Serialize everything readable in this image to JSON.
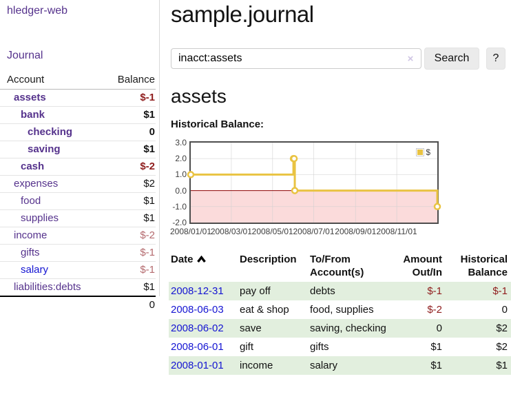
{
  "sidebar": {
    "brand": "hledger-web",
    "journal_link": "Journal",
    "accounts": {
      "col_account": "Account",
      "col_balance": "Balance",
      "rows": [
        {
          "name": "assets",
          "level": 0,
          "bold": true,
          "name_color": "purple",
          "balance": "$-1",
          "balance_style": "neg-strong"
        },
        {
          "name": "bank",
          "level": 1,
          "bold": true,
          "name_color": "purple",
          "balance": "$1",
          "balance_style": "pos"
        },
        {
          "name": "checking",
          "level": 2,
          "bold": true,
          "name_color": "purple",
          "balance": "0",
          "balance_style": "pos"
        },
        {
          "name": "saving",
          "level": 2,
          "bold": true,
          "name_color": "purple",
          "balance": "$1",
          "balance_style": "pos"
        },
        {
          "name": "cash",
          "level": 1,
          "bold": true,
          "name_color": "purple",
          "balance": "$-2",
          "balance_style": "neg-strong"
        },
        {
          "name": "expenses",
          "level": 0,
          "bold": false,
          "name_color": "purple",
          "balance": "$2",
          "balance_style": "pos"
        },
        {
          "name": "food",
          "level": 1,
          "bold": false,
          "name_color": "purple",
          "balance": "$1",
          "balance_style": "pos"
        },
        {
          "name": "supplies",
          "level": 1,
          "bold": false,
          "name_color": "purple",
          "balance": "$1",
          "balance_style": "pos"
        },
        {
          "name": "income",
          "level": 0,
          "bold": false,
          "name_color": "purple",
          "balance": "$-2",
          "balance_style": "neg-muted"
        },
        {
          "name": "gifts",
          "level": 1,
          "bold": false,
          "name_color": "purple",
          "balance": "$-1",
          "balance_style": "neg-muted"
        },
        {
          "name": "salary",
          "level": 1,
          "bold": false,
          "name_color": "blue",
          "balance": "$-1",
          "balance_style": "neg-muted"
        },
        {
          "name": "liabilities:debts",
          "level": 0,
          "bold": false,
          "name_color": "purple",
          "balance": "$1",
          "balance_style": "pos"
        }
      ],
      "total": "0"
    }
  },
  "header": {
    "title": "sample.journal"
  },
  "search": {
    "value": "inacct:assets",
    "clear_icon": "×",
    "button_label": "Search",
    "help_label": "?"
  },
  "account_page": {
    "title": "assets",
    "chart_heading": "Historical Balance:"
  },
  "chart_data": {
    "type": "line",
    "title": "Historical Balance",
    "step": true,
    "series": [
      {
        "name": "$",
        "color": "#e9c342",
        "points": [
          {
            "date": "2008/01/01",
            "day": 0,
            "value": 1
          },
          {
            "date": "2008/06/01",
            "day": 152,
            "value": 2
          },
          {
            "date": "2008/06/02",
            "day": 153,
            "value": 2
          },
          {
            "date": "2008/06/03",
            "day": 154,
            "value": 0
          },
          {
            "date": "2008/12/31",
            "day": 365,
            "value": -1
          }
        ]
      }
    ],
    "x_ticks": [
      {
        "label": "2008/01/01",
        "day": 0
      },
      {
        "label": "2008/03/01",
        "day": 60
      },
      {
        "label": "2008/05/01",
        "day": 121
      },
      {
        "label": "2008/07/01",
        "day": 182
      },
      {
        "label": "2008/09/01",
        "day": 244
      },
      {
        "label": "2008/11/01",
        "day": 305
      }
    ],
    "y_ticks": [
      "3.0",
      "2.0",
      "1.0",
      "0.0",
      "-1.0",
      "-2.0"
    ],
    "ylim": [
      -2,
      3
    ],
    "xlim_days": [
      0,
      365
    ],
    "grid": true,
    "legend": {
      "label": "$",
      "position": "top-right"
    },
    "negative_region_color": "#fbdbdb",
    "zero_line_color": "#8b0000",
    "gridline_color": "#d0d0d0"
  },
  "register": {
    "columns": [
      {
        "line1": "Date",
        "line2": "",
        "align": "left",
        "sortable": true
      },
      {
        "line1": "Description",
        "line2": "",
        "align": "left",
        "sortable": false
      },
      {
        "line1": "To/From",
        "line2": "Account(s)",
        "align": "left",
        "sortable": false
      },
      {
        "line1": "Amount",
        "line2": "Out/In",
        "align": "right",
        "sortable": false
      },
      {
        "line1": "Historical",
        "line2": "Balance",
        "align": "right",
        "sortable": false
      }
    ],
    "rows": [
      {
        "date": "2008-12-31",
        "description": "pay off",
        "accounts": "debts",
        "amount": "$-1",
        "amount_neg": true,
        "balance": "$-1",
        "balance_neg": true,
        "stripe": true
      },
      {
        "date": "2008-06-03",
        "description": "eat & shop",
        "accounts": "food, supplies",
        "amount": "$-2",
        "amount_neg": true,
        "balance": "0",
        "balance_neg": false,
        "stripe": false
      },
      {
        "date": "2008-06-02",
        "description": "save",
        "accounts": "saving, checking",
        "amount": "0",
        "amount_neg": false,
        "balance": "$2",
        "balance_neg": false,
        "stripe": true
      },
      {
        "date": "2008-06-01",
        "description": "gift",
        "accounts": "gifts",
        "amount": "$1",
        "amount_neg": false,
        "balance": "$2",
        "balance_neg": false,
        "stripe": false
      },
      {
        "date": "2008-01-01",
        "description": "income",
        "accounts": "salary",
        "amount": "$1",
        "amount_neg": false,
        "balance": "$1",
        "balance_neg": false,
        "stripe": true
      }
    ]
  },
  "colors": {
    "link_purple": "#55328c",
    "link_blue": "#1414d2",
    "negative_strong": "#8f1d1d",
    "negative_muted": "#b46a6e",
    "row_stripe_green": "#e2efde",
    "series_gold": "#e9c342"
  }
}
